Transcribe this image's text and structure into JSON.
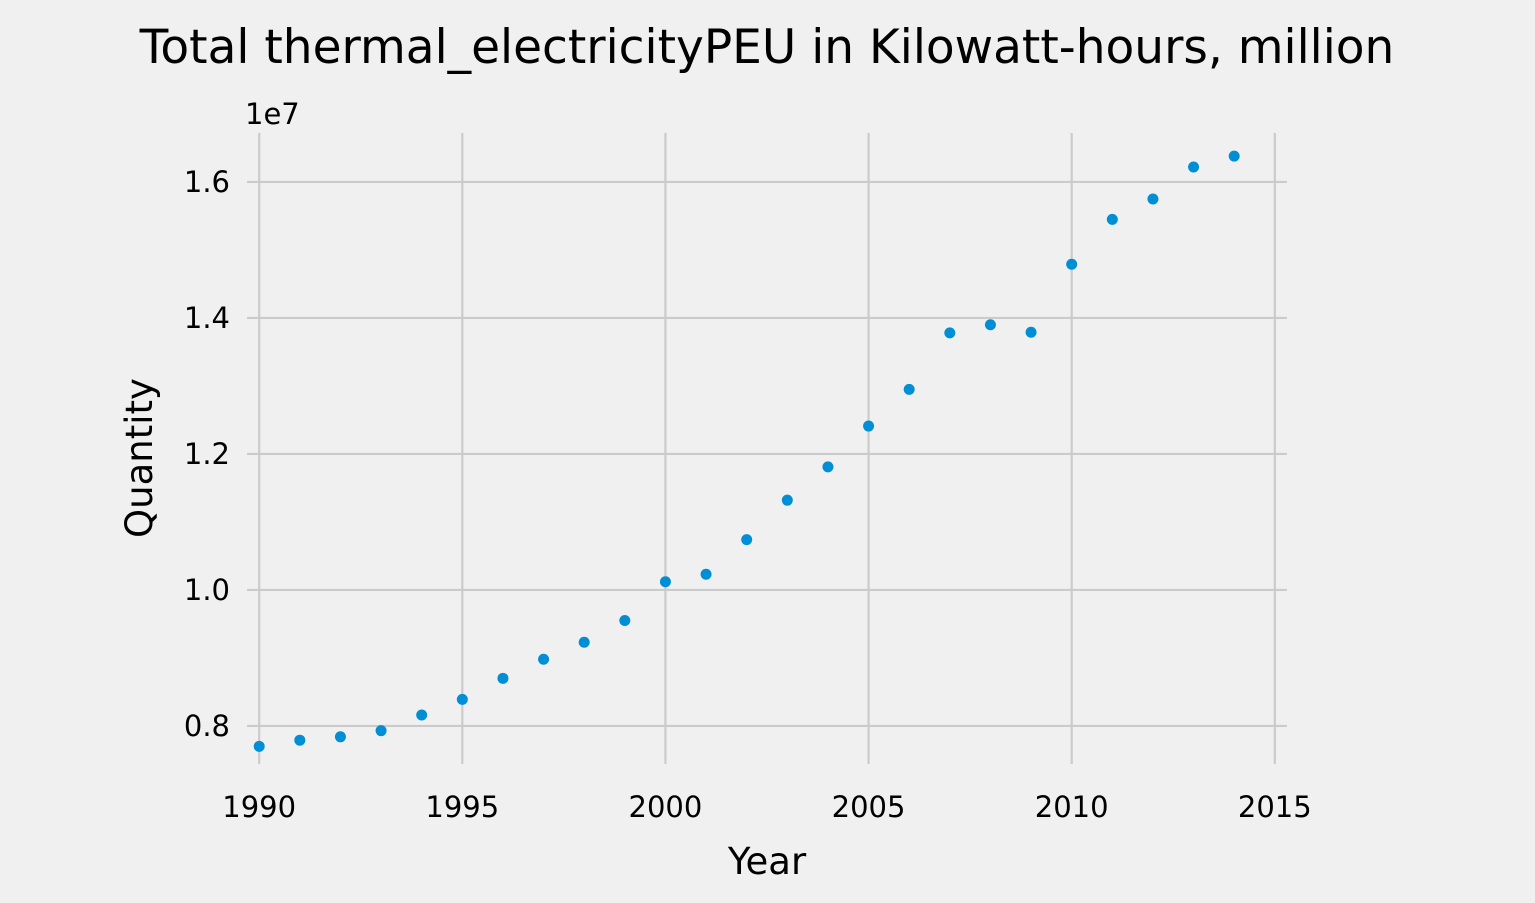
{
  "chart_data": {
    "type": "scatter",
    "title": "Total thermal_electricityPEU in Kilowatt-hours, million",
    "xlabel": "Year",
    "ylabel": "Quantity",
    "offset_label": "1e7",
    "xlim": [
      1989.7,
      2015.3
    ],
    "ylim": [
      0.744,
      1.672
    ],
    "xticks": [
      1990,
      1995,
      2000,
      2005,
      2010,
      2015
    ],
    "yticks": [
      0.8,
      1.0,
      1.2,
      1.4,
      1.6
    ],
    "ytick_labels": [
      "0.8",
      "1.0",
      "1.2",
      "1.4",
      "1.6"
    ],
    "grid": true,
    "series": [
      {
        "color": "#008fd5",
        "x": [
          1990,
          1991,
          1992,
          1993,
          1994,
          1995,
          1996,
          1997,
          1998,
          1999,
          2000,
          2001,
          2002,
          2003,
          2004,
          2005,
          2006,
          2007,
          2008,
          2009,
          2010,
          2011,
          2012,
          2013,
          2014
        ],
        "y": [
          0.77,
          0.779,
          0.784,
          0.793,
          0.816,
          0.839,
          0.87,
          0.898,
          0.923,
          0.955,
          1.012,
          1.023,
          1.074,
          1.132,
          1.181,
          1.241,
          1.295,
          1.378,
          1.39,
          1.379,
          1.479,
          1.545,
          1.575,
          1.622,
          1.638
        ]
      }
    ]
  }
}
